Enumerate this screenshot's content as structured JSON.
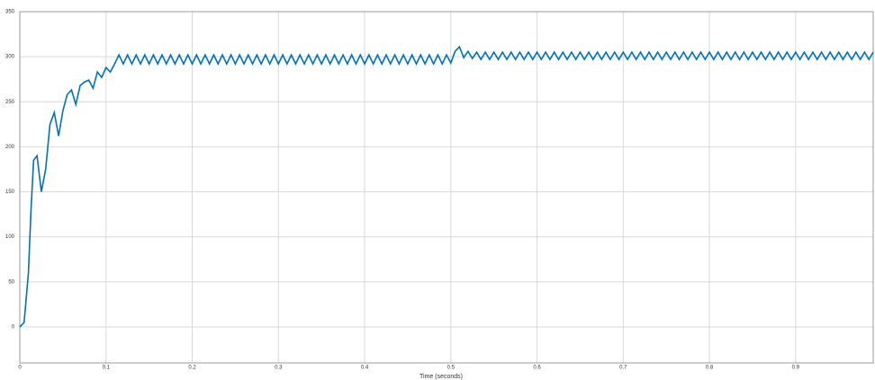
{
  "chart_data": {
    "type": "line",
    "x_label": "Time (seconds)",
    "xlim": [
      0,
      0.99
    ],
    "ylim": [
      -40,
      350
    ],
    "xticks": [
      0,
      0.1,
      0.2,
      0.3,
      0.4,
      0.5,
      0.6,
      0.7,
      0.8,
      0.9
    ],
    "yticks": [
      0,
      50,
      100,
      150,
      200,
      250,
      300,
      350
    ],
    "grid": true,
    "series": [
      {
        "color": "#0072bd",
        "x": [
          0,
          0.005,
          0.01,
          0.013,
          0.016,
          0.02,
          0.025,
          0.03,
          0.035,
          0.04,
          0.045,
          0.05,
          0.055,
          0.06,
          0.065,
          0.07,
          0.075,
          0.08,
          0.085,
          0.09,
          0.095,
          0.1,
          0.105,
          0.11,
          0.115,
          0.12,
          0.125,
          0.13,
          0.135,
          0.14,
          0.145,
          0.15,
          0.155,
          0.16,
          0.165,
          0.17,
          0.175,
          0.18,
          0.185,
          0.19,
          0.195,
          0.2,
          0.205,
          0.21,
          0.215,
          0.22,
          0.225,
          0.23,
          0.235,
          0.24,
          0.245,
          0.25,
          0.255,
          0.26,
          0.265,
          0.27,
          0.275,
          0.28,
          0.285,
          0.29,
          0.295,
          0.3,
          0.305,
          0.31,
          0.315,
          0.32,
          0.325,
          0.33,
          0.335,
          0.34,
          0.345,
          0.35,
          0.355,
          0.36,
          0.365,
          0.37,
          0.375,
          0.38,
          0.385,
          0.39,
          0.395,
          0.4,
          0.405,
          0.41,
          0.415,
          0.42,
          0.425,
          0.43,
          0.435,
          0.44,
          0.445,
          0.45,
          0.455,
          0.46,
          0.465,
          0.47,
          0.475,
          0.48,
          0.485,
          0.49,
          0.495,
          0.5,
          0.505,
          0.51,
          0.515,
          0.52,
          0.525,
          0.53,
          0.535,
          0.54,
          0.545,
          0.55,
          0.555,
          0.56,
          0.565,
          0.57,
          0.575,
          0.58,
          0.585,
          0.59,
          0.595,
          0.6,
          0.605,
          0.61,
          0.615,
          0.62,
          0.625,
          0.63,
          0.635,
          0.64,
          0.645,
          0.65,
          0.655,
          0.66,
          0.665,
          0.67,
          0.675,
          0.68,
          0.685,
          0.69,
          0.695,
          0.7,
          0.705,
          0.71,
          0.715,
          0.72,
          0.725,
          0.73,
          0.735,
          0.74,
          0.745,
          0.75,
          0.755,
          0.76,
          0.765,
          0.77,
          0.775,
          0.78,
          0.785,
          0.79,
          0.795,
          0.8,
          0.805,
          0.81,
          0.815,
          0.82,
          0.825,
          0.83,
          0.835,
          0.84,
          0.845,
          0.85,
          0.855,
          0.86,
          0.865,
          0.87,
          0.875,
          0.88,
          0.885,
          0.89,
          0.895,
          0.9,
          0.905,
          0.91,
          0.915,
          0.92,
          0.925,
          0.93,
          0.935,
          0.94,
          0.945,
          0.95,
          0.955,
          0.96,
          0.965,
          0.97,
          0.975,
          0.98,
          0.985,
          0.99
        ],
        "values": [
          0,
          5,
          60,
          130,
          185,
          190,
          150,
          175,
          225,
          238,
          212,
          240,
          258,
          263,
          247,
          268,
          272,
          274,
          265,
          283,
          277,
          288,
          283,
          292,
          302,
          292,
          302,
          292,
          302,
          292,
          302,
          292,
          302,
          292,
          302,
          292,
          302,
          292,
          302,
          292,
          302,
          292,
          302,
          292,
          302,
          292,
          302,
          292,
          302,
          292,
          302,
          292,
          302,
          292,
          302,
          292,
          302,
          292,
          302,
          292,
          302,
          292,
          302,
          292,
          302,
          292,
          302,
          292,
          302,
          292,
          302,
          292,
          302,
          292,
          302,
          292,
          302,
          292,
          302,
          292,
          302,
          292,
          302,
          292,
          302,
          292,
          302,
          292,
          302,
          292,
          302,
          292,
          302,
          292,
          302,
          292,
          302,
          292,
          302,
          292,
          302,
          293,
          306,
          311,
          299,
          306,
          298,
          305,
          297,
          305,
          297,
          305,
          297,
          305,
          297,
          305,
          297,
          305,
          297,
          305,
          297,
          305,
          297,
          305,
          297,
          305,
          297,
          305,
          297,
          305,
          297,
          305,
          297,
          305,
          297,
          305,
          297,
          305,
          297,
          305,
          297,
          305,
          297,
          305,
          297,
          305,
          297,
          305,
          297,
          305,
          297,
          305,
          297,
          305,
          297,
          305,
          297,
          305,
          297,
          305,
          297,
          305,
          297,
          305,
          297,
          305,
          297,
          305,
          297,
          305,
          297,
          305,
          297,
          305,
          297,
          305,
          297,
          305,
          297,
          305,
          297,
          305,
          297,
          305,
          297,
          305,
          297,
          305,
          297,
          305,
          297,
          305,
          297,
          305,
          297,
          305,
          297,
          305,
          297,
          305
        ]
      }
    ]
  }
}
